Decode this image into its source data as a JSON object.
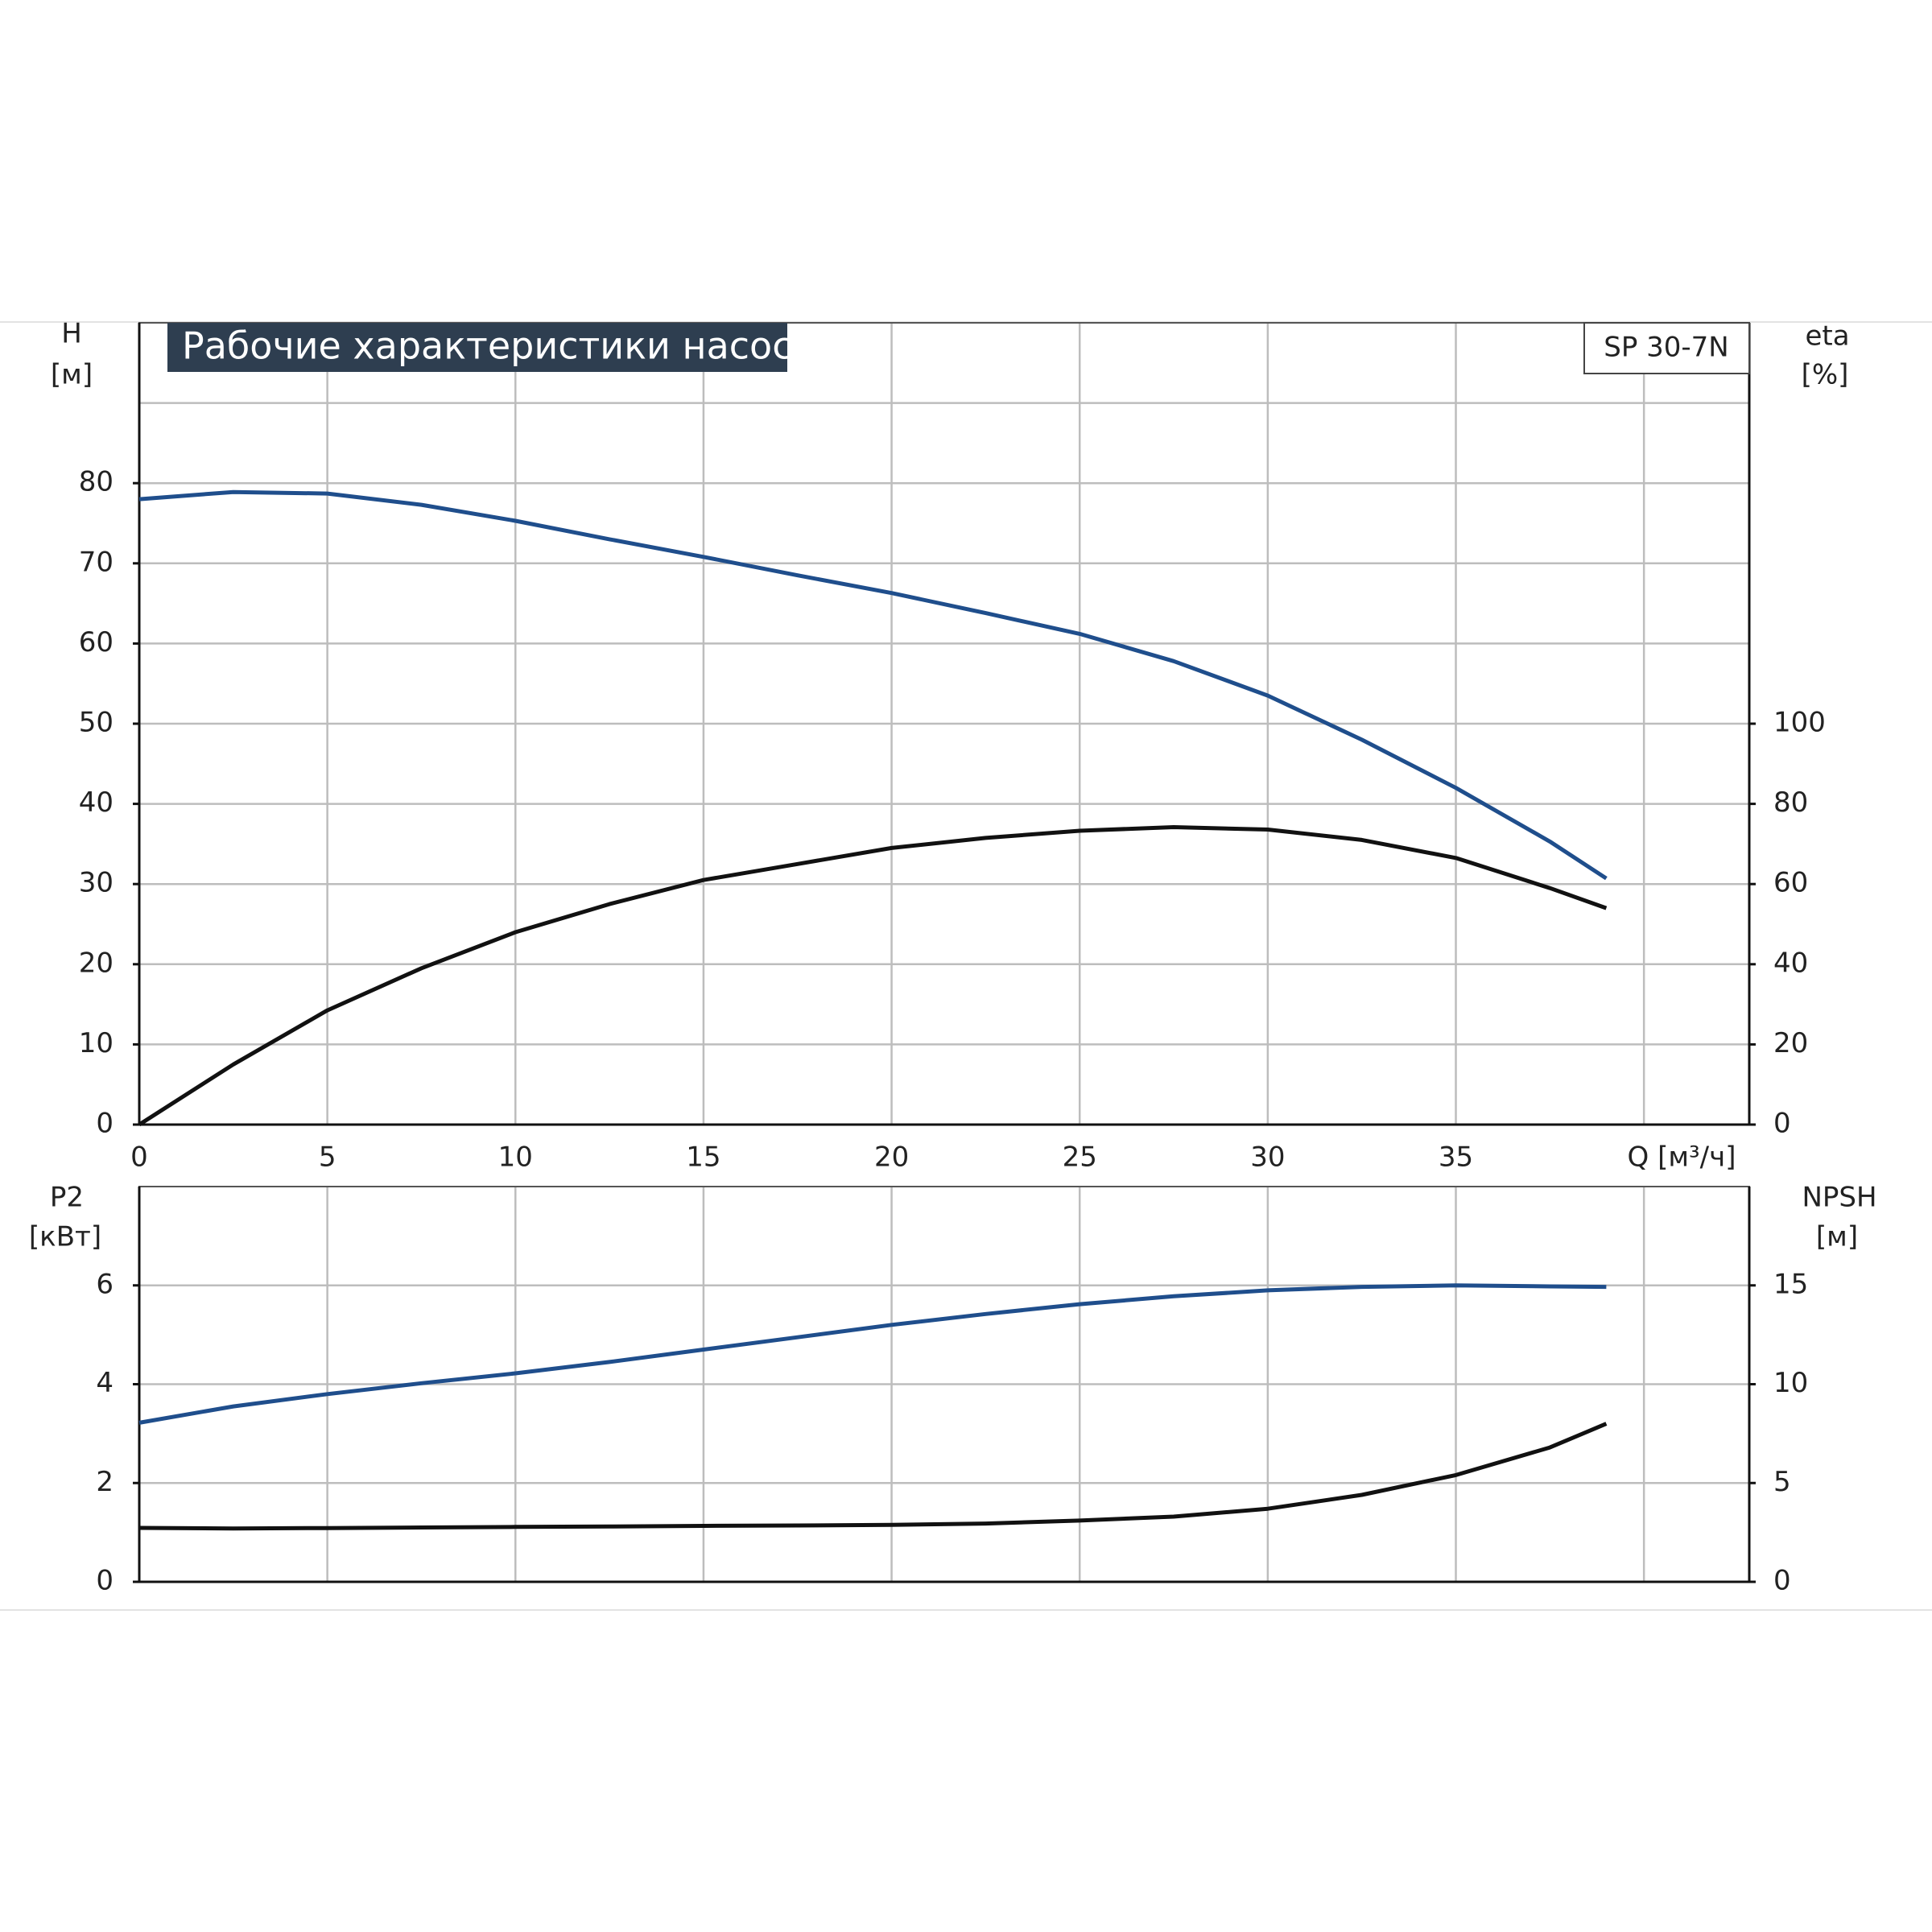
{
  "chart_data": [
    {
      "type": "line",
      "title": "Рабочие характеристики насоса",
      "model": "SP 30-7N",
      "xlabel": "Q [м³/ч]",
      "ylabel": [
        "H",
        "[м]"
      ],
      "y2label": [
        "eta",
        "[%]"
      ],
      "x": [
        0,
        2.5,
        5,
        7.5,
        10,
        12.5,
        15,
        17.5,
        20,
        22.5,
        25,
        27.5,
        30,
        32.5,
        35,
        37.5,
        39
      ],
      "xlim": [
        0,
        42.8
      ],
      "xticks": [
        0,
        5,
        10,
        15,
        20,
        25,
        30,
        35
      ],
      "ylim": [
        0,
        100
      ],
      "yticks": [
        0,
        10,
        20,
        30,
        40,
        50,
        60,
        70,
        80
      ],
      "y2lim": [
        0,
        200
      ],
      "y2ticks": [
        0,
        20,
        40,
        60,
        80,
        100
      ],
      "grid": true,
      "series": [
        {
          "name": "H",
          "color": "#1f4e8c",
          "values": [
            78,
            78.9,
            78.7,
            77.3,
            75.3,
            73,
            70.8,
            68.5,
            66.3,
            63.8,
            61.2,
            57.8,
            53.5,
            48,
            42,
            35.3,
            30.7
          ]
        },
        {
          "name": "eta",
          "color": "#111111",
          "axis": "y2",
          "values": [
            0,
            15,
            28.5,
            39,
            48,
            55,
            61,
            65,
            69,
            71.5,
            73.3,
            74.2,
            73.6,
            71,
            66.5,
            59,
            54
          ]
        }
      ]
    },
    {
      "type": "line",
      "ylabel": [
        "P2",
        "[кВт]"
      ],
      "y2label": [
        "NPSH",
        "[м]"
      ],
      "x": [
        0,
        2.5,
        5,
        7.5,
        10,
        12.5,
        15,
        17.5,
        20,
        22.5,
        25,
        27.5,
        30,
        32.5,
        35,
        37.5,
        39
      ],
      "xlim": [
        0,
        42.8
      ],
      "xticks": [
        0,
        5,
        10,
        15,
        20,
        25,
        30,
        35
      ],
      "ylim": [
        0,
        8
      ],
      "yticks": [
        0,
        2,
        4,
        6
      ],
      "y2lim": [
        0,
        20
      ],
      "y2ticks": [
        0,
        5,
        10,
        15
      ],
      "grid": true,
      "series": [
        {
          "name": "P2",
          "color": "#1f4e8c",
          "values": [
            3.22,
            3.55,
            3.8,
            4.02,
            4.22,
            4.45,
            4.7,
            4.95,
            5.2,
            5.42,
            5.62,
            5.78,
            5.9,
            5.97,
            6.0,
            5.98,
            5.97
          ]
        },
        {
          "name": "NPSH",
          "color": "#111111",
          "axis": "y2",
          "values": [
            2.73,
            2.7,
            2.72,
            2.75,
            2.78,
            2.8,
            2.83,
            2.85,
            2.88,
            2.95,
            3.1,
            3.3,
            3.7,
            4.4,
            5.4,
            6.8,
            8.0
          ]
        }
      ]
    }
  ]
}
